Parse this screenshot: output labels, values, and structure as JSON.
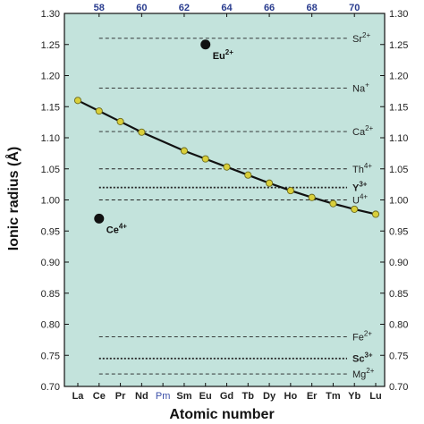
{
  "colors": {
    "plot_bg": "#c3e3dc",
    "line": "#111111",
    "marker_fill": "#d9cf3a",
    "marker_edge": "#6b6a1c",
    "special_point": "#111111",
    "top_axis_text": "#2a3d8f",
    "pm_text": "#3b4fa8"
  },
  "chart_data": {
    "type": "line",
    "title": "",
    "xlabel": "Atomic number",
    "ylabel": "Ionic radius (Å)",
    "ylim": [
      0.7,
      1.3
    ],
    "y_ticks": [
      "0.70",
      "0.75",
      "0.80",
      "0.85",
      "0.90",
      "0.95",
      "1.00",
      "1.05",
      "1.10",
      "1.15",
      "1.20",
      "1.25",
      "1.30"
    ],
    "y_ticks_right": [
      "0.70",
      "0.75",
      "0.80",
      "0.85",
      "0.90",
      "0.95",
      "1.00",
      "1.05",
      "1.10",
      "1.15",
      "1.20",
      "1.25",
      "1.30"
    ],
    "categories": [
      "La",
      "Ce",
      "Pr",
      "Nd",
      "Pm",
      "Sm",
      "Eu",
      "Gd",
      "Tb",
      "Dy",
      "Ho",
      "Er",
      "Tm",
      "Yb",
      "Lu"
    ],
    "top_ticks": [
      "58",
      "60",
      "62",
      "64",
      "66",
      "68",
      "70"
    ],
    "top_tick_categories": [
      1,
      3,
      5,
      7,
      9,
      11,
      13
    ],
    "grid": false,
    "series": [
      {
        "points": [
          {
            "cat": "La",
            "y": 1.16
          },
          {
            "cat": "Ce",
            "y": 1.143
          },
          {
            "cat": "Pr",
            "y": 1.126
          },
          {
            "cat": "Nd",
            "y": 1.109
          },
          {
            "cat": "Sm",
            "y": 1.079
          },
          {
            "cat": "Eu",
            "y": 1.066
          },
          {
            "cat": "Gd",
            "y": 1.053
          },
          {
            "cat": "Tb",
            "y": 1.04
          },
          {
            "cat": "Dy",
            "y": 1.027
          },
          {
            "cat": "Ho",
            "y": 1.015
          },
          {
            "cat": "Er",
            "y": 1.004
          },
          {
            "cat": "Tm",
            "y": 0.994
          },
          {
            "cat": "Yb",
            "y": 0.985
          },
          {
            "cat": "Lu",
            "y": 0.977
          }
        ]
      }
    ],
    "special_points": [
      {
        "cat": "Ce",
        "y": 0.97,
        "label": "Ce",
        "charge": "4+"
      },
      {
        "cat": "Eu",
        "y": 1.25,
        "label": "Eu",
        "charge": "2+"
      }
    ],
    "reference_lines": [
      {
        "label": "Sr",
        "charge": "2+",
        "y": 1.26,
        "style": "dashed",
        "bold": false
      },
      {
        "label": "Na",
        "charge": "+",
        "y": 1.18,
        "style": "dashed",
        "bold": false
      },
      {
        "label": "Ca",
        "charge": "2+",
        "y": 1.11,
        "style": "dashed",
        "bold": false
      },
      {
        "label": "Th",
        "charge": "4+",
        "y": 1.05,
        "style": "dashed",
        "bold": false
      },
      {
        "label": "Y",
        "charge": "3+",
        "y": 1.02,
        "style": "dotted",
        "bold": true
      },
      {
        "label": "U",
        "charge": "4+",
        "y": 1.0,
        "style": "dashed",
        "bold": false
      },
      {
        "label": "Fe",
        "charge": "2+",
        "y": 0.78,
        "style": "dashed",
        "bold": false
      },
      {
        "label": "Sc",
        "charge": "3+",
        "y": 0.745,
        "style": "dotted",
        "bold": true
      },
      {
        "label": "Mg",
        "charge": "2+",
        "y": 0.72,
        "style": "dashed",
        "bold": false
      }
    ]
  }
}
